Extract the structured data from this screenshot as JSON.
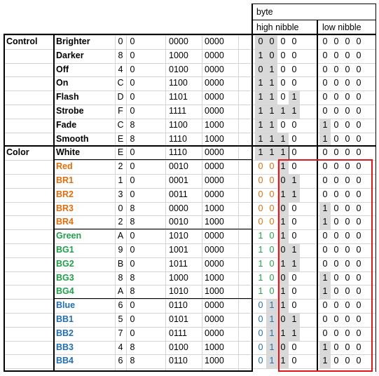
{
  "header": {
    "byte": "byte",
    "high_nibble": "high nibble",
    "low_nibble": "low nibble"
  },
  "colors": {
    "orange": "#e46c0a",
    "green": "#1fa04a",
    "blue": "#1f6fb4",
    "red_box": "#e0161c",
    "shade": "#d9d9d9"
  },
  "groups": [
    {
      "label": "Control",
      "first_row": 0
    },
    {
      "label": "Color",
      "first_row": 8
    }
  ],
  "rows": [
    {
      "name": "Brighter",
      "color": "default",
      "hex": [
        "0",
        "0"
      ],
      "bin": [
        "0000",
        "0000"
      ],
      "bits": [
        "0",
        "0",
        "0",
        "0",
        "0",
        "0",
        "0",
        "0"
      ]
    },
    {
      "name": "Darker",
      "color": "default",
      "hex": [
        "8",
        "0"
      ],
      "bin": [
        "1000",
        "0000"
      ],
      "bits": [
        "1",
        "0",
        "0",
        "0",
        "0",
        "0",
        "0",
        "0"
      ]
    },
    {
      "name": "Off",
      "color": "default",
      "hex": [
        "4",
        "0"
      ],
      "bin": [
        "0100",
        "0000"
      ],
      "bits": [
        "0",
        "1",
        "0",
        "0",
        "0",
        "0",
        "0",
        "0"
      ]
    },
    {
      "name": "On",
      "color": "default",
      "hex": [
        "C",
        "0"
      ],
      "bin": [
        "1100",
        "0000"
      ],
      "bits": [
        "1",
        "1",
        "0",
        "0",
        "0",
        "0",
        "0",
        "0"
      ]
    },
    {
      "name": "Flash",
      "color": "default",
      "hex": [
        "D",
        "0"
      ],
      "bin": [
        "1101",
        "0000"
      ],
      "bits": [
        "1",
        "1",
        "0",
        "1",
        "0",
        "0",
        "0",
        "0"
      ]
    },
    {
      "name": "Strobe",
      "color": "default",
      "hex": [
        "F",
        "0"
      ],
      "bin": [
        "1111",
        "0000"
      ],
      "bits": [
        "1",
        "1",
        "1",
        "1",
        "0",
        "0",
        "0",
        "0"
      ]
    },
    {
      "name": "Fade",
      "color": "default",
      "hex": [
        "C",
        "8"
      ],
      "bin": [
        "1100",
        "1000"
      ],
      "bits": [
        "1",
        "1",
        "0",
        "0",
        "1",
        "0",
        "0",
        "0"
      ]
    },
    {
      "name": "Smooth",
      "color": "default",
      "hex": [
        "E",
        "8"
      ],
      "bin": [
        "1110",
        "1000"
      ],
      "bits": [
        "1",
        "1",
        "1",
        "0",
        "1",
        "0",
        "0",
        "0"
      ]
    },
    {
      "name": "White",
      "color": "default",
      "hex": [
        "E",
        "0"
      ],
      "bin": [
        "1110",
        "0000"
      ],
      "bits": [
        "1",
        "1",
        "1",
        "0",
        "0",
        "0",
        "0",
        "0"
      ]
    },
    {
      "name": "Red",
      "color": "orange",
      "hex": [
        "2",
        "0"
      ],
      "bin": [
        "0010",
        "0000"
      ],
      "bits": [
        "0",
        "0",
        "1",
        "0",
        "0",
        "0",
        "0",
        "0"
      ]
    },
    {
      "name": "BR1",
      "color": "orange",
      "hex": [
        "1",
        "0"
      ],
      "bin": [
        "0001",
        "0000"
      ],
      "bits": [
        "0",
        "0",
        "0",
        "1",
        "0",
        "0",
        "0",
        "0"
      ]
    },
    {
      "name": "BR2",
      "color": "orange",
      "hex": [
        "3",
        "0"
      ],
      "bin": [
        "0011",
        "0000"
      ],
      "bits": [
        "0",
        "0",
        "1",
        "1",
        "0",
        "0",
        "0",
        "0"
      ]
    },
    {
      "name": "BR3",
      "color": "orange",
      "hex": [
        "0",
        "8"
      ],
      "bin": [
        "0000",
        "1000"
      ],
      "bits": [
        "0",
        "0",
        "0",
        "0",
        "1",
        "0",
        "0",
        "0"
      ]
    },
    {
      "name": "BR4",
      "color": "orange",
      "hex": [
        "2",
        "8"
      ],
      "bin": [
        "0010",
        "1000"
      ],
      "bits": [
        "0",
        "0",
        "1",
        "0",
        "1",
        "0",
        "0",
        "0"
      ]
    },
    {
      "name": "Green",
      "color": "green",
      "hex": [
        "A",
        "0"
      ],
      "bin": [
        "1010",
        "0000"
      ],
      "bits": [
        "1",
        "0",
        "1",
        "0",
        "0",
        "0",
        "0",
        "0"
      ]
    },
    {
      "name": "BG1",
      "color": "green",
      "hex": [
        "9",
        "0"
      ],
      "bin": [
        "1001",
        "0000"
      ],
      "bits": [
        "1",
        "0",
        "0",
        "1",
        "0",
        "0",
        "0",
        "0"
      ]
    },
    {
      "name": "BG2",
      "color": "green",
      "hex": [
        "B",
        "0"
      ],
      "bin": [
        "1011",
        "0000"
      ],
      "bits": [
        "1",
        "0",
        "1",
        "1",
        "0",
        "0",
        "0",
        "0"
      ]
    },
    {
      "name": "BG3",
      "color": "green",
      "hex": [
        "8",
        "8"
      ],
      "bin": [
        "1000",
        "1000"
      ],
      "bits": [
        "1",
        "0",
        "0",
        "0",
        "1",
        "0",
        "0",
        "0"
      ]
    },
    {
      "name": "BG4",
      "color": "green",
      "hex": [
        "A",
        "8"
      ],
      "bin": [
        "1010",
        "1000"
      ],
      "bits": [
        "1",
        "0",
        "1",
        "0",
        "1",
        "0",
        "0",
        "0"
      ]
    },
    {
      "name": "Blue",
      "color": "blue",
      "hex": [
        "6",
        "0"
      ],
      "bin": [
        "0110",
        "0000"
      ],
      "bits": [
        "0",
        "1",
        "1",
        "0",
        "0",
        "0",
        "0",
        "0"
      ]
    },
    {
      "name": "BB1",
      "color": "blue",
      "hex": [
        "5",
        "0"
      ],
      "bin": [
        "0101",
        "0000"
      ],
      "bits": [
        "0",
        "1",
        "0",
        "1",
        "0",
        "0",
        "0",
        "0"
      ]
    },
    {
      "name": "BB2",
      "color": "blue",
      "hex": [
        "7",
        "0"
      ],
      "bin": [
        "0111",
        "0000"
      ],
      "bits": [
        "0",
        "1",
        "1",
        "1",
        "0",
        "0",
        "0",
        "0"
      ]
    },
    {
      "name": "BB3",
      "color": "blue",
      "hex": [
        "4",
        "8"
      ],
      "bin": [
        "0100",
        "1000"
      ],
      "bits": [
        "0",
        "1",
        "0",
        "0",
        "1",
        "0",
        "0",
        "0"
      ]
    },
    {
      "name": "BB4",
      "color": "blue",
      "hex": [
        "6",
        "8"
      ],
      "bin": [
        "0110",
        "1000"
      ],
      "bits": [
        "0",
        "1",
        "1",
        "0",
        "1",
        "0",
        "0",
        "0"
      ]
    }
  ]
}
